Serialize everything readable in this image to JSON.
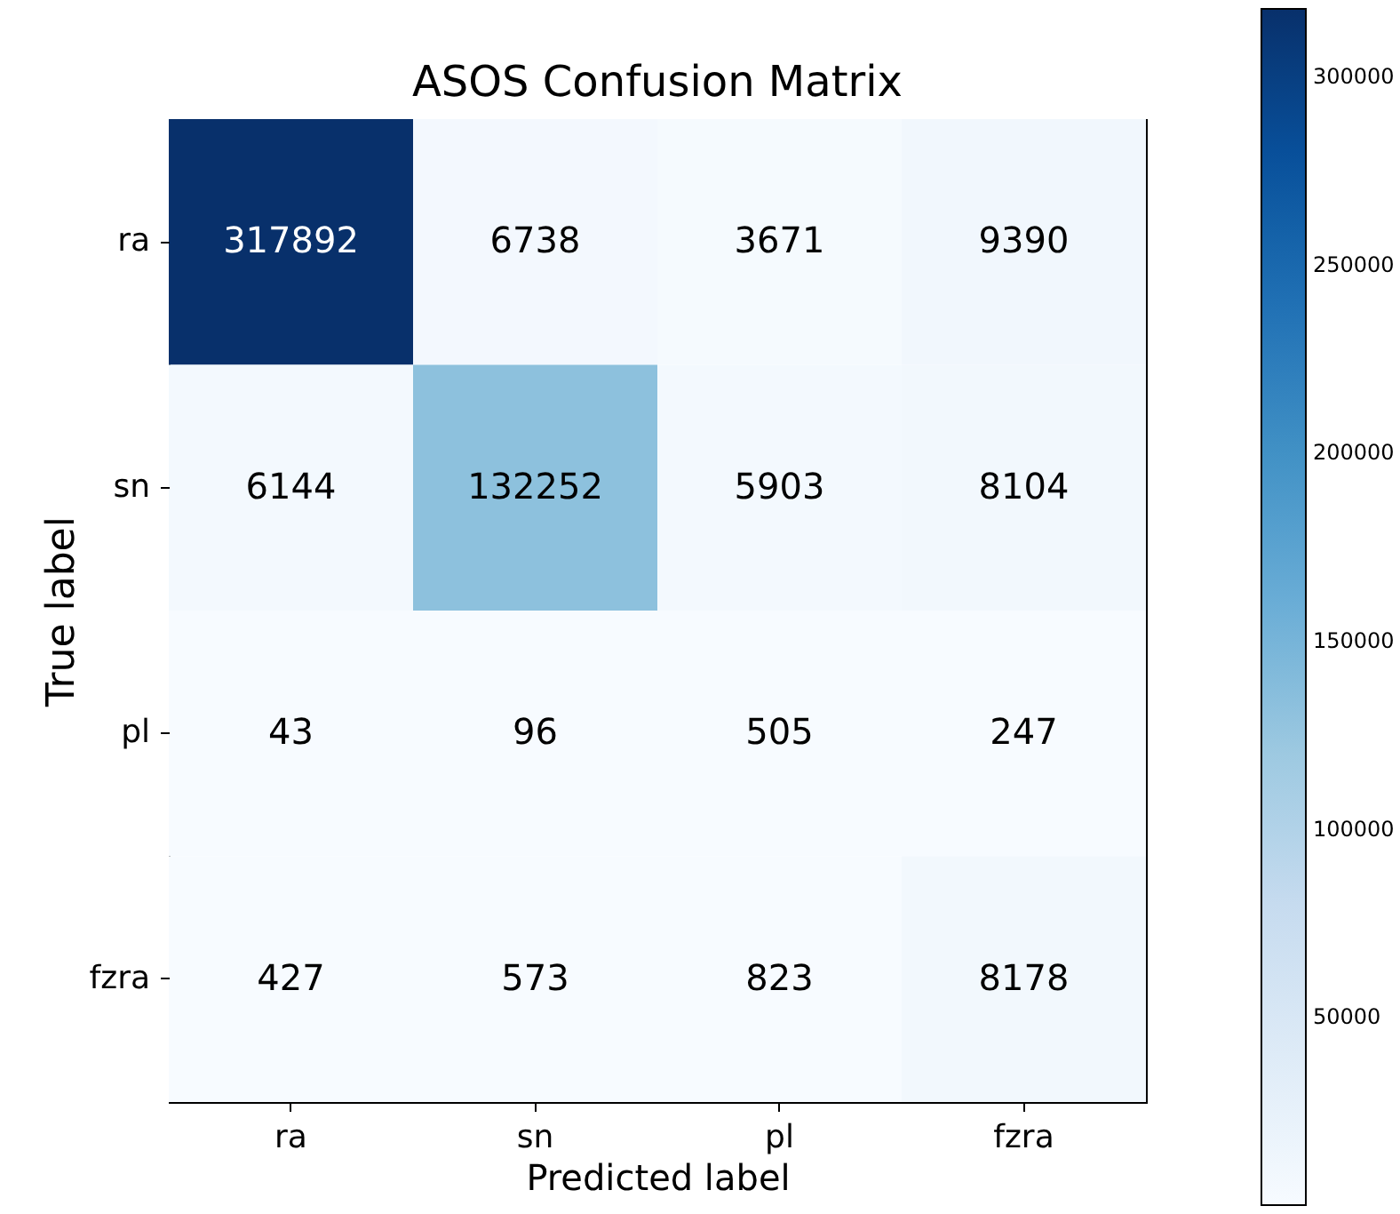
{
  "chart_data": {
    "type": "heatmap",
    "title": "ASOS Confusion Matrix",
    "xlabel": "Predicted label",
    "ylabel": "True label",
    "categories": [
      "ra",
      "sn",
      "pl",
      "fzra"
    ],
    "y_categories": [
      "ra",
      "sn",
      "pl",
      "fzra"
    ],
    "cells": [
      [
        317892,
        6738,
        3671,
        9390
      ],
      [
        6144,
        132252,
        5903,
        8104
      ],
      [
        43,
        96,
        505,
        247
      ],
      [
        427,
        573,
        823,
        8178
      ]
    ],
    "clim": [
      43,
      317892
    ],
    "cticks": [
      50000,
      100000,
      150000,
      200000,
      250000,
      300000
    ],
    "data_labels": true
  }
}
